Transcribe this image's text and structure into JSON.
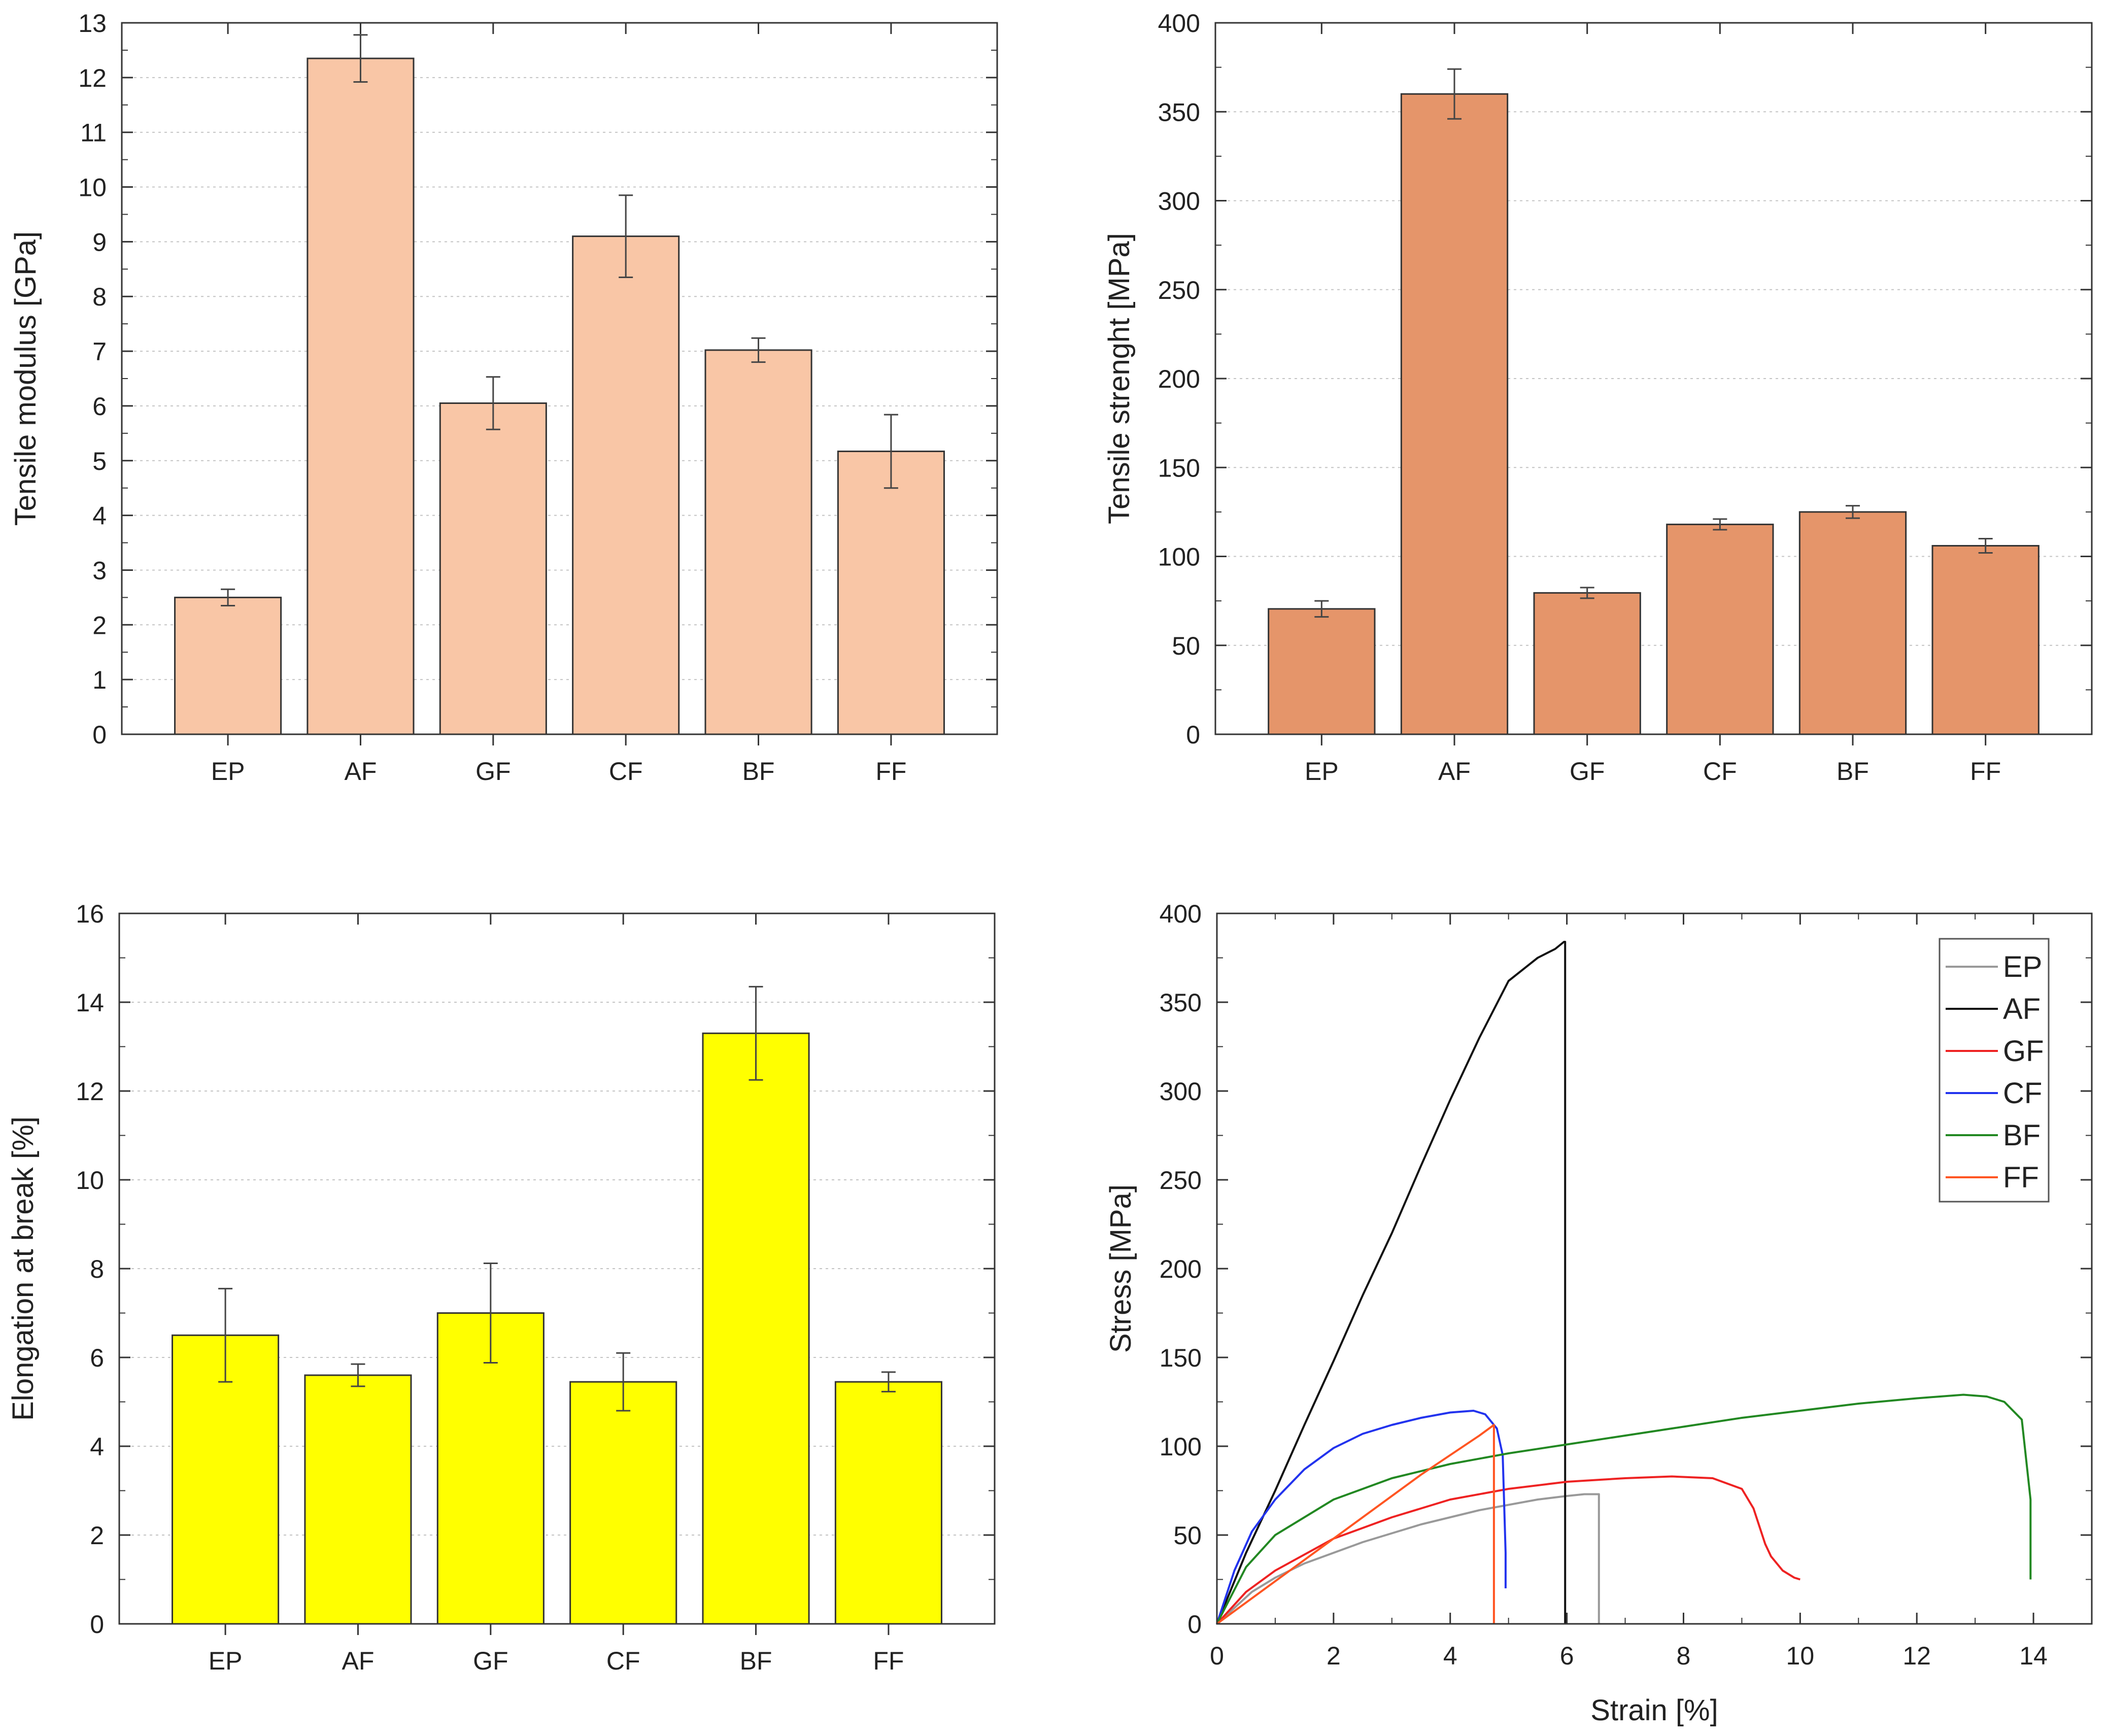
{
  "chart_data": [
    {
      "type": "bar",
      "title": "",
      "xlabel": "",
      "ylabel": "Tensile modulus [GPa]",
      "ylim": [
        0,
        13
      ],
      "yticks": [
        0,
        1,
        2,
        3,
        4,
        5,
        6,
        7,
        8,
        9,
        10,
        11,
        12,
        13
      ],
      "grid": true,
      "categories": [
        "EP",
        "AF",
        "GF",
        "CF",
        "BF",
        "FF"
      ],
      "values": [
        2.5,
        12.35,
        6.05,
        9.1,
        7.02,
        5.17
      ],
      "errors": [
        0.15,
        0.43,
        0.48,
        0.75,
        0.22,
        0.67
      ],
      "color": "#f9c6a6"
    },
    {
      "type": "bar",
      "title": "",
      "xlabel": "",
      "ylabel": "Tensile strenght [MPa]",
      "ylim": [
        0,
        400
      ],
      "yticks": [
        0,
        50,
        100,
        150,
        200,
        250,
        300,
        350,
        400
      ],
      "grid": true,
      "categories": [
        "EP",
        "AF",
        "GF",
        "CF",
        "BF",
        "FF"
      ],
      "values": [
        70.5,
        360,
        79.5,
        118,
        125,
        106
      ],
      "errors": [
        4.5,
        14,
        3,
        3,
        3.5,
        4
      ],
      "color": "#e5956a"
    },
    {
      "type": "bar",
      "title": "",
      "xlabel": "",
      "ylabel": "Elongation at break [%]",
      "ylim": [
        0,
        16
      ],
      "yticks": [
        0,
        2,
        4,
        6,
        8,
        10,
        12,
        14,
        16
      ],
      "grid": true,
      "categories": [
        "EP",
        "AF",
        "GF",
        "CF",
        "BF",
        "FF"
      ],
      "values": [
        6.5,
        5.6,
        7.0,
        5.45,
        13.3,
        5.45
      ],
      "errors": [
        1.05,
        0.25,
        1.12,
        0.65,
        1.05,
        0.22
      ],
      "color": "#ffff00"
    },
    {
      "type": "line",
      "title": "",
      "xlabel": "Strain [%]",
      "ylabel": "Stress [MPa]",
      "xlim": [
        0,
        15
      ],
      "ylim": [
        0,
        400
      ],
      "xticks": [
        0,
        2,
        4,
        6,
        8,
        10,
        12,
        14
      ],
      "yticks": [
        0,
        50,
        100,
        150,
        200,
        250,
        300,
        350,
        400
      ],
      "grid": false,
      "legend_position": "top-right",
      "series": [
        {
          "name": "EP",
          "color": "#999999",
          "x": [
            0,
            0.3,
            0.6,
            1,
            1.5,
            2,
            2.5,
            3,
            3.5,
            4,
            4.5,
            5,
            5.5,
            6,
            6.3,
            6.55,
            6.55
          ],
          "y": [
            0,
            9,
            18,
            26,
            34,
            40,
            46,
            51,
            56,
            60,
            64,
            67,
            70,
            72,
            73,
            73,
            0
          ]
        },
        {
          "name": "AF",
          "color": "#111111",
          "x": [
            0,
            0.5,
            1,
            1.5,
            2,
            2.5,
            3,
            3.5,
            4,
            4.5,
            5,
            5.5,
            5.8,
            5.95,
            5.97,
            5.97
          ],
          "y": [
            0,
            40,
            75,
            112,
            148,
            185,
            220,
            258,
            295,
            330,
            362,
            375,
            380,
            384,
            384,
            0
          ]
        },
        {
          "name": "GF",
          "color": "#ee2222",
          "x": [
            0,
            0.5,
            1,
            2,
            3,
            4,
            5,
            6,
            7,
            7.8,
            8.5,
            9,
            9.2,
            9.4,
            9.5,
            9.7,
            9.9,
            10
          ],
          "y": [
            0,
            18,
            30,
            48,
            60,
            70,
            76,
            80,
            82,
            83,
            82,
            76,
            65,
            45,
            38,
            30,
            26,
            25
          ]
        },
        {
          "name": "CF",
          "color": "#2233ee",
          "x": [
            0,
            0.3,
            0.6,
            1,
            1.5,
            2,
            2.5,
            3,
            3.5,
            4,
            4.4,
            4.6,
            4.8,
            4.9,
            4.95,
            4.95
          ],
          "y": [
            0,
            30,
            52,
            70,
            87,
            99,
            107,
            112,
            116,
            119,
            120,
            118,
            110,
            95,
            40,
            20
          ]
        },
        {
          "name": "BF",
          "color": "#228822",
          "x": [
            0,
            0.5,
            1,
            2,
            3,
            4,
            5,
            6,
            7,
            8,
            9,
            10,
            11,
            12,
            12.8,
            13.2,
            13.5,
            13.8,
            13.95,
            13.95
          ],
          "y": [
            0,
            32,
            50,
            70,
            82,
            90,
            96,
            101,
            106,
            111,
            116,
            120,
            124,
            127,
            129,
            128,
            125,
            115,
            70,
            25
          ]
        },
        {
          "name": "FF",
          "color": "#ff5522",
          "x": [
            0,
            0.5,
            1,
            1.5,
            2,
            2.5,
            3,
            3.5,
            4,
            4.5,
            4.75,
            4.75
          ],
          "y": [
            0,
            12,
            24,
            36,
            48,
            60,
            72,
            84,
            95,
            106,
            112,
            0
          ]
        }
      ]
    }
  ]
}
